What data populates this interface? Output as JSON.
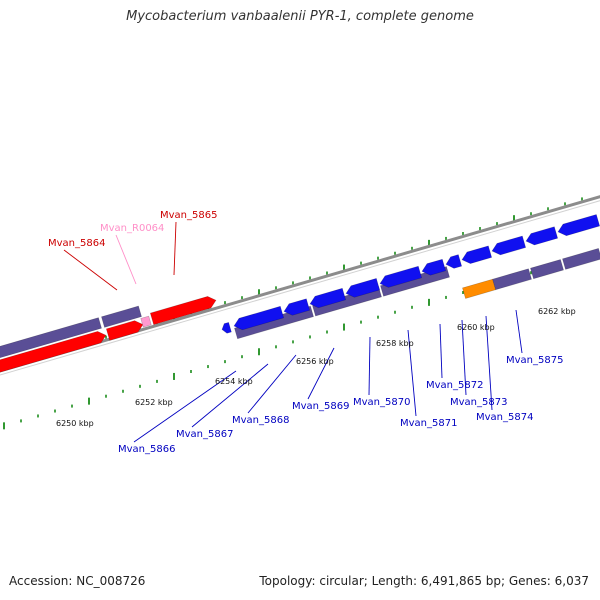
{
  "title": "Mycobacterium vanbaalenii PYR-1, complete genome",
  "footer": {
    "accession": "Accession: NC_008726",
    "summary": "Topology: circular; Length: 6,491,865 bp; Genes: 6,037"
  },
  "colors": {
    "backbone": "#8c8c8c",
    "cds_red": "#ff0000",
    "cds_blue": "#1010f0",
    "protein_purple": "#5a4e96",
    "rna_pink": "#ff9ad0",
    "highlight_orange": "#ff8c00",
    "tick_green": "#1a8c1a",
    "label_red": "#cc0000",
    "label_pink": "#ff8fc8",
    "label_blue": "#0000c0"
  },
  "ruler_labels": [
    "6250 kbp",
    "6252 kbp",
    "6254 kbp",
    "6256 kbp",
    "6258 kbp",
    "6260 kbp",
    "6262 kbp"
  ],
  "genes": [
    {
      "name": "Mvan_5864",
      "color": "label_red"
    },
    {
      "name": "Mvan_R0064",
      "color": "label_pink"
    },
    {
      "name": "Mvan_5865",
      "color": "label_red"
    },
    {
      "name": "Mvan_5866",
      "color": "label_blue"
    },
    {
      "name": "Mvan_5867",
      "color": "label_blue"
    },
    {
      "name": "Mvan_5868",
      "color": "label_blue"
    },
    {
      "name": "Mvan_5869",
      "color": "label_blue"
    },
    {
      "name": "Mvan_5870",
      "color": "label_blue"
    },
    {
      "name": "Mvan_5871",
      "color": "label_blue"
    },
    {
      "name": "Mvan_5872",
      "color": "label_blue"
    },
    {
      "name": "Mvan_5873",
      "color": "label_blue"
    },
    {
      "name": "Mvan_5874",
      "color": "label_blue"
    },
    {
      "name": "Mvan_5875",
      "color": "label_blue"
    }
  ]
}
